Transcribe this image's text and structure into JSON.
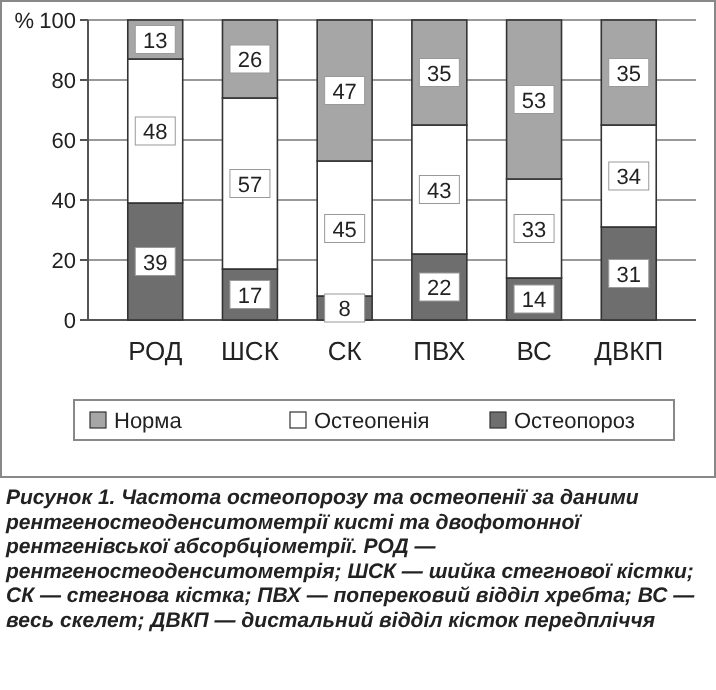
{
  "chart_data": {
    "type": "bar",
    "stacked": true,
    "ylabel": "%",
    "categories": [
      "РОД",
      "ШСК",
      "СК",
      "ПВХ",
      "ВС",
      "ДВКП"
    ],
    "series": [
      {
        "name": "Остеопороз",
        "color": "#6e6e6e",
        "values": [
          39,
          17,
          8,
          22,
          14,
          31
        ]
      },
      {
        "name": "Остеопенія",
        "color": "#ffffff",
        "values": [
          48,
          57,
          45,
          43,
          33,
          34
        ]
      },
      {
        "name": "Норма",
        "color": "#a6a6a6",
        "values": [
          13,
          26,
          47,
          35,
          53,
          35
        ]
      }
    ],
    "ylim": [
      0,
      100
    ],
    "yticks": [
      0,
      20,
      40,
      60,
      80,
      100
    ],
    "grid": "y",
    "legend": "bottom",
    "data_labels": true,
    "annotations": [
      "Рисунок 1. Частота остеопорозу та остеопенії за даними рентгеностеоденситометрії кисті та двофотонної рентгенівської абсорбціометрії. РОД — рентгеностеоденситометрія; ШСК — шийка стегнової кістки; СК — стегнова кістка; ПВХ — поперековий відділ хребта; ВС — весь скелет; ДВКП — дистальний відділ кісток передпліччя"
    ]
  }
}
